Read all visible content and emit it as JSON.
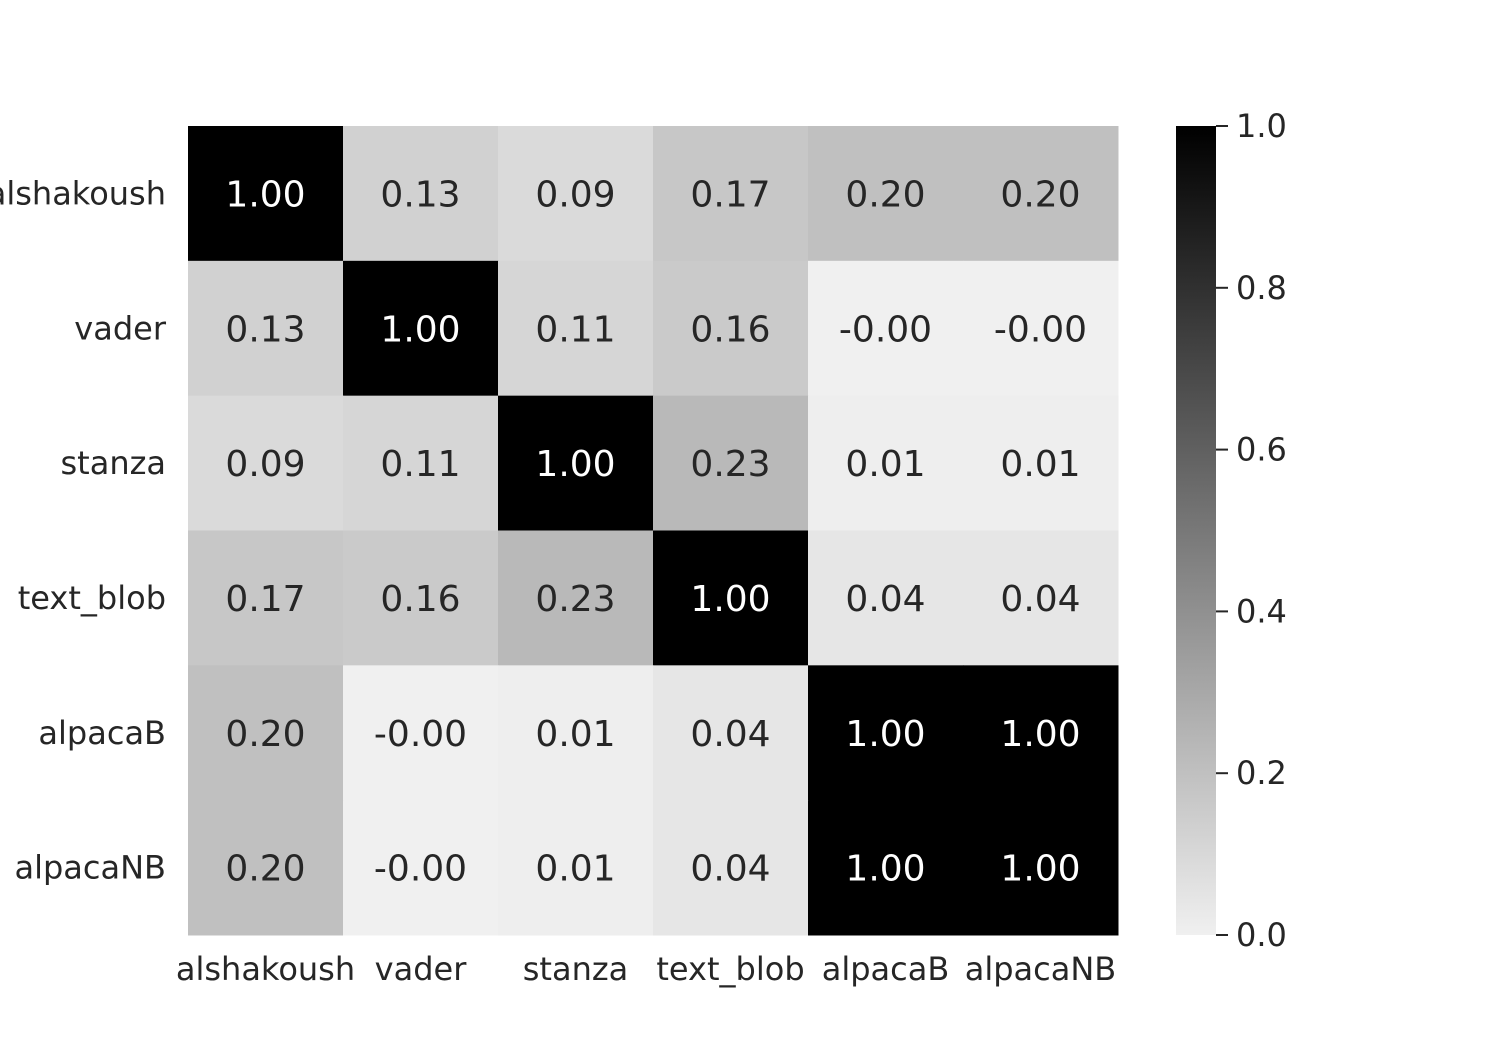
{
  "chart_data": {
    "type": "heatmap",
    "title": "",
    "xlabel": "",
    "ylabel": "",
    "x_labels": [
      "alshakoush",
      "vader",
      "stanza",
      "text_blob",
      "alpacaB",
      "alpacaNB"
    ],
    "y_labels": [
      "alshakoush",
      "vader",
      "stanza",
      "text_blob",
      "alpacaB",
      "alpacaNB"
    ],
    "values": [
      [
        1.0,
        0.13,
        0.09,
        0.17,
        0.2,
        0.2
      ],
      [
        0.13,
        1.0,
        0.11,
        0.16,
        -0.0,
        -0.0
      ],
      [
        0.09,
        0.11,
        1.0,
        0.23,
        0.01,
        0.01
      ],
      [
        0.17,
        0.16,
        0.23,
        1.0,
        0.04,
        0.04
      ],
      [
        0.2,
        -0.0,
        0.01,
        0.04,
        1.0,
        1.0
      ],
      [
        0.2,
        -0.0,
        0.01,
        0.04,
        1.0,
        1.0
      ]
    ],
    "cell_labels": [
      [
        "1.00",
        "0.13",
        "0.09",
        "0.17",
        "0.20",
        "0.20"
      ],
      [
        "0.13",
        "1.00",
        "0.11",
        "0.16",
        "-0.00",
        "-0.00"
      ],
      [
        "0.09",
        "0.11",
        "1.00",
        "0.23",
        "0.01",
        "0.01"
      ],
      [
        "0.17",
        "0.16",
        "0.23",
        "1.00",
        "0.04",
        "0.04"
      ],
      [
        "0.20",
        "-0.00",
        "0.01",
        "0.04",
        "1.00",
        "1.00"
      ],
      [
        "0.20",
        "-0.00",
        "0.01",
        "0.04",
        "1.00",
        "1.00"
      ]
    ],
    "colormap": {
      "low": "#f0f0f0",
      "high": "#000000",
      "name": "Greys"
    },
    "colorbar": {
      "range": [
        0.0,
        1.0
      ],
      "ticks": [
        0.0,
        0.2,
        0.4,
        0.6,
        0.8,
        1.0
      ],
      "tick_labels": [
        "0.0",
        "0.2",
        "0.4",
        "0.6",
        "0.8",
        "1.0"
      ],
      "placement": "right"
    },
    "grid": false,
    "text_colors": {
      "dark": "#262626",
      "light": "#ffffff"
    }
  }
}
